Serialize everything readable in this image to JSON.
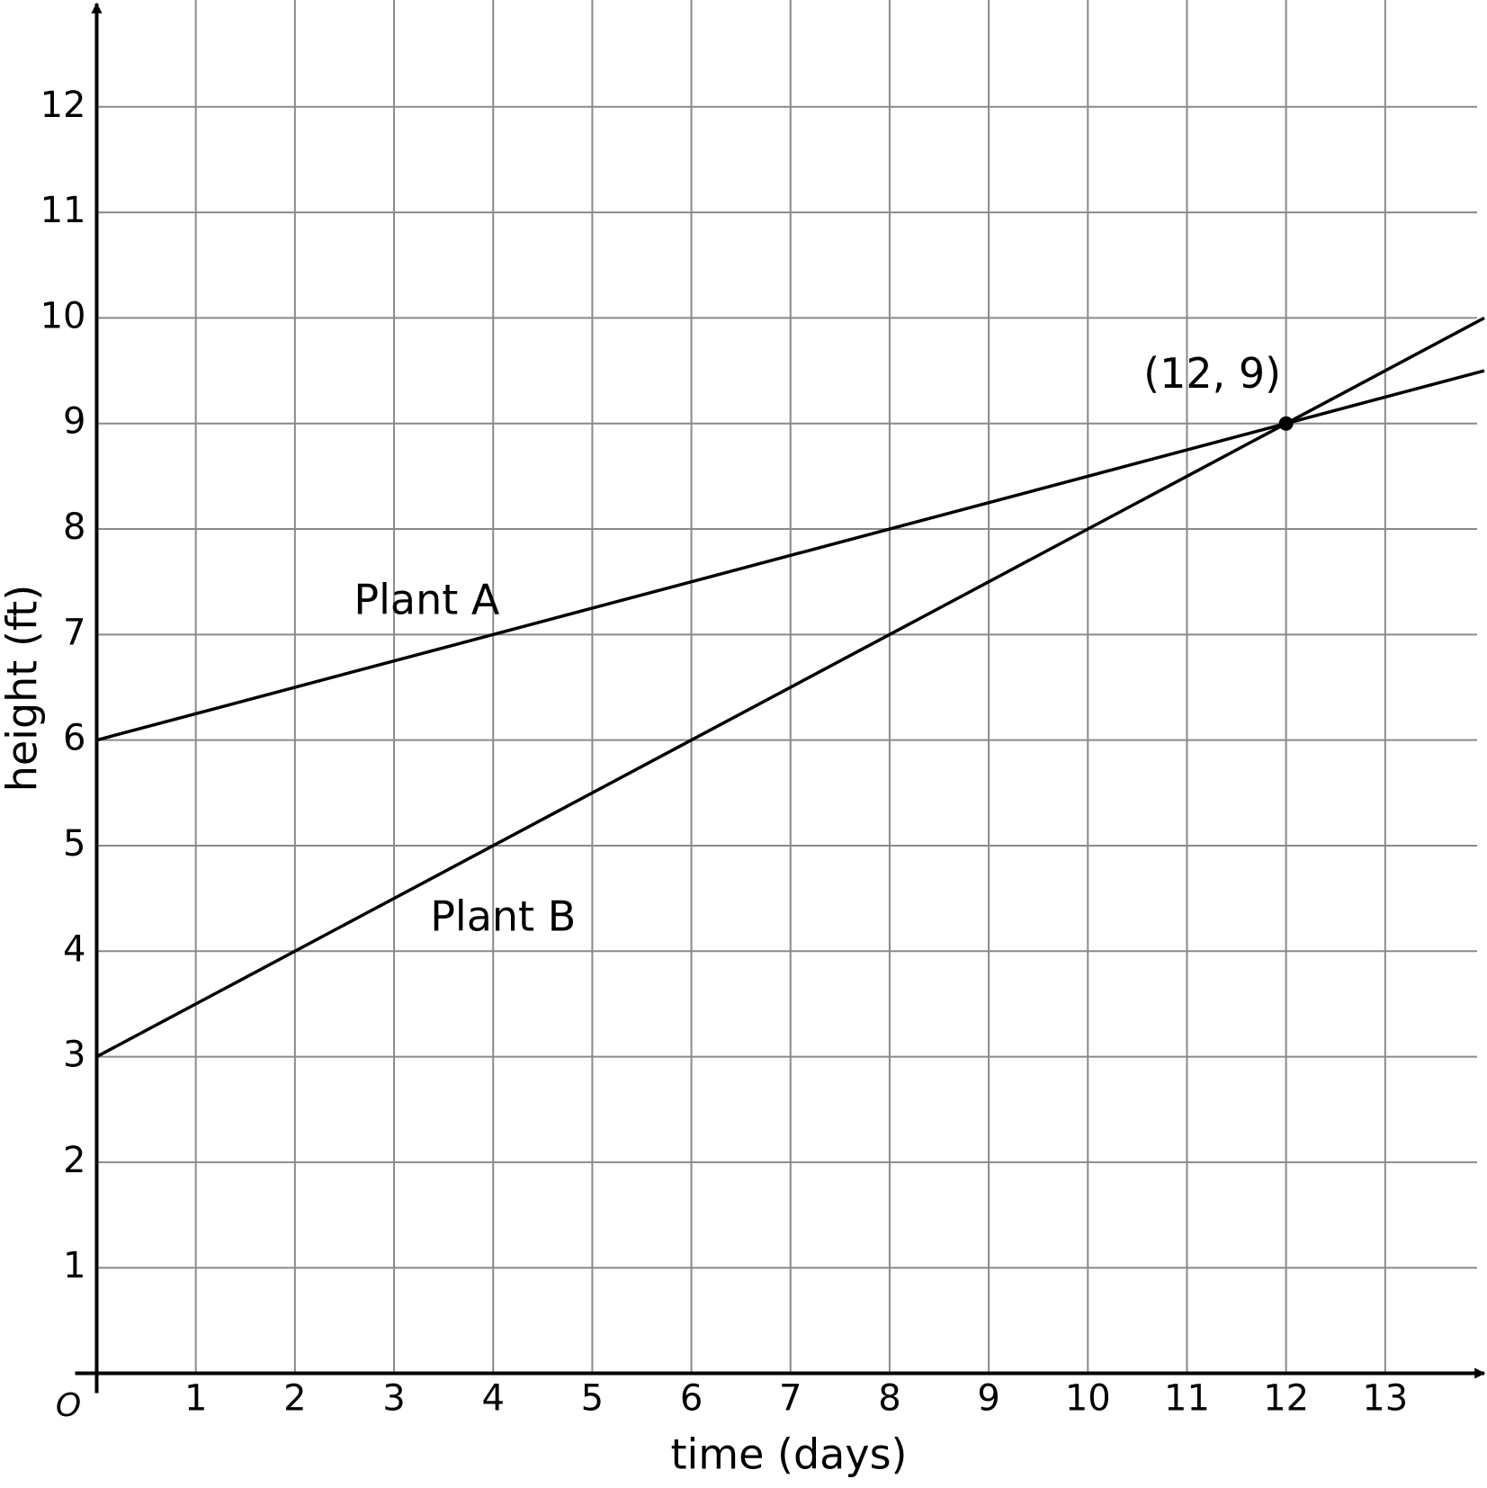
{
  "chart_data": {
    "type": "line",
    "x_label": "time (days)",
    "y_label": "height (ft)",
    "origin_label": "O",
    "series": [
      {
        "name": "Plant A",
        "color": "#000000",
        "x": [
          0,
          14
        ],
        "values": [
          6,
          9.5
        ]
      },
      {
        "name": "Plant B",
        "color": "#000000",
        "x": [
          0,
          14
        ],
        "values": [
          3,
          10
        ]
      }
    ],
    "annotations": [
      {
        "text": "(12, 9)",
        "x": 12,
        "y": 9
      }
    ],
    "xlim": [
      0,
      14
    ],
    "ylim": [
      0,
      13
    ],
    "xticks": [
      1,
      2,
      3,
      4,
      5,
      6,
      7,
      8,
      9,
      10,
      11,
      12,
      13
    ],
    "yticks": [
      1,
      2,
      3,
      4,
      5,
      6,
      7,
      8,
      9,
      10,
      11,
      12
    ],
    "grid": true
  }
}
